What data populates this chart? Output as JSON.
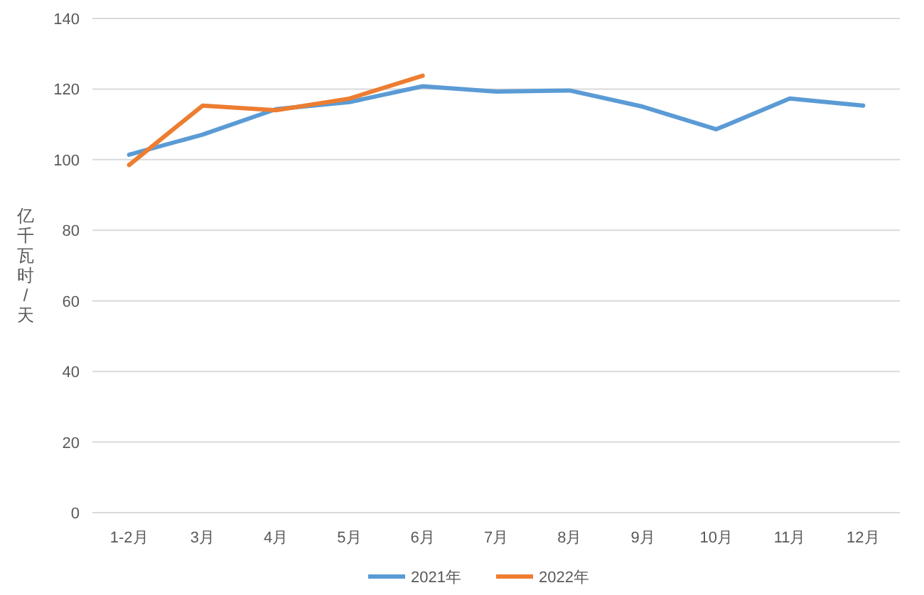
{
  "chart_data": {
    "type": "line",
    "categories": [
      "1-2月",
      "3月",
      "4月",
      "5月",
      "6月",
      "7月",
      "8月",
      "9月",
      "10月",
      "11月",
      "12月"
    ],
    "ylabel": "亿千瓦时/天",
    "ylim": [
      0,
      140
    ],
    "yticks": [
      0,
      20,
      40,
      60,
      80,
      100,
      120,
      140
    ],
    "grid": "y",
    "legend": "bottom",
    "line_style": "solid",
    "marker": "none",
    "series": [
      {
        "name": "2021年",
        "color": "#5b9bd5",
        "values": [
          101.4,
          107.1,
          114.3,
          116.3,
          120.8,
          119.3,
          119.6,
          115,
          108.6,
          117.3,
          115.3
        ]
      },
      {
        "name": "2022年",
        "color": "#ed7d31",
        "values": [
          98.5,
          115.3,
          114,
          117.3,
          123.8,
          null,
          null,
          null,
          null,
          null,
          null
        ]
      }
    ]
  }
}
